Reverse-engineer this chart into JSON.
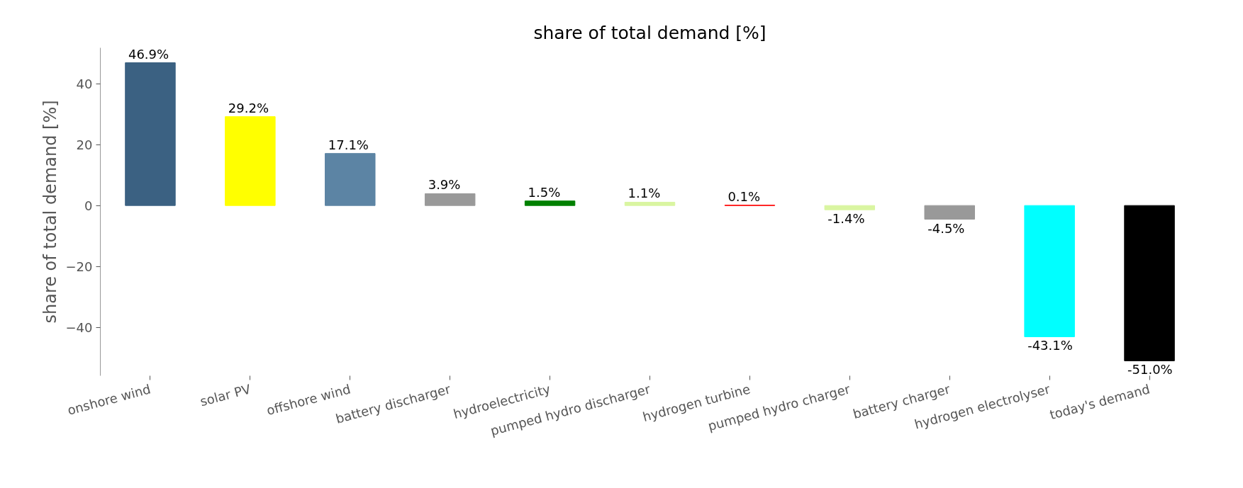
{
  "chart_data": {
    "type": "bar",
    "title": "share of total demand [%]",
    "ylabel": "share of total demand [%]",
    "categories": [
      "onshore wind",
      "solar PV",
      "offshore wind",
      "battery discharger",
      "hydroelectricity",
      "pumped hydro discharger",
      "hydrogen turbine",
      "pumped hydro charger",
      "battery charger",
      "hydrogen electrolyser",
      "today's demand"
    ],
    "values": [
      46.9,
      29.2,
      17.1,
      3.9,
      1.5,
      1.1,
      0.1,
      -1.4,
      -4.5,
      -43.1,
      -51.0
    ],
    "colors": [
      "#3b6182",
      "#ffff00",
      "#5c84a4",
      "#999999",
      "#008000",
      "#d9f5a1",
      "#ff0000",
      "#d9f5a1",
      "#999999",
      "#00ffff",
      "#000000"
    ],
    "value_labels": [
      "46.9%",
      "29.2%",
      "17.1%",
      "3.9%",
      "1.5%",
      "1.1%",
      "0.1%",
      "-1.4%",
      "-4.5%",
      "-43.1%",
      "-51.0%"
    ],
    "ylim": [
      -55.9,
      51.8
    ],
    "yticks": [
      {
        "value": -40,
        "label": "−40"
      },
      {
        "value": -20,
        "label": "−20"
      },
      0,
      20,
      40
    ]
  }
}
